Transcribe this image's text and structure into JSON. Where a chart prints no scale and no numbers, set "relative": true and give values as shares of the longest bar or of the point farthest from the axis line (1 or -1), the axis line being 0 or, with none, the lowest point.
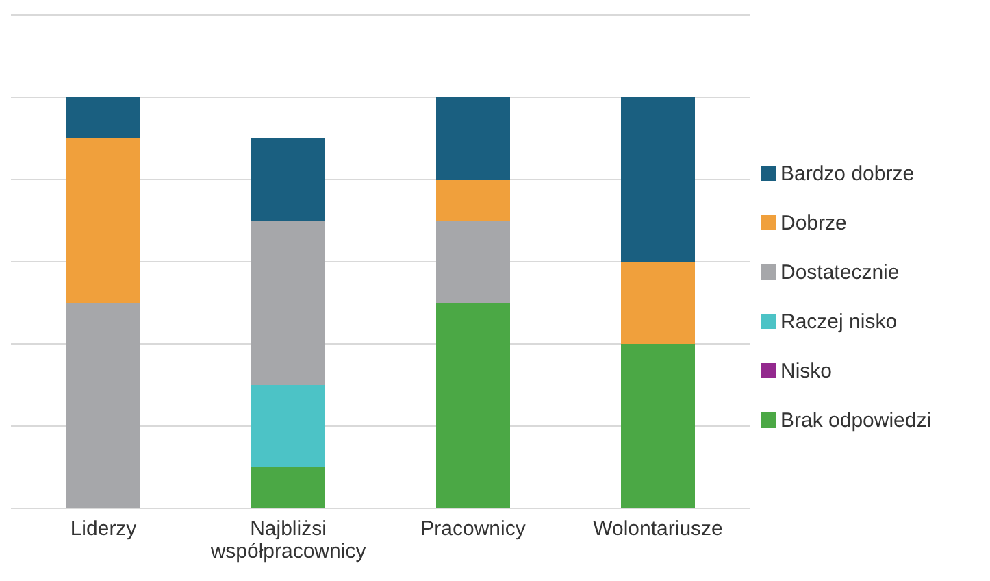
{
  "chart_data": {
    "type": "bar",
    "stacked": true,
    "relative": true,
    "grid": "y",
    "legend": "right",
    "categories": [
      "Liderzy",
      "Najbliżsi współpracownicy",
      "Pracownicy",
      "Wolontariusze"
    ],
    "series": [
      {
        "name": "Brak odpowiedzi",
        "color": "#4ba845",
        "values": [
          0,
          0.1,
          0.5,
          0.4
        ]
      },
      {
        "name": "Nisko",
        "color": "#93298e",
        "values": [
          0,
          0,
          0,
          0
        ]
      },
      {
        "name": "Raczej nisko",
        "color": "#4cc3c6",
        "values": [
          0,
          0.2,
          0,
          0
        ]
      },
      {
        "name": "Dostatecznie",
        "color": "#a6a7aa",
        "values": [
          0.5,
          0.4,
          0.2,
          0
        ]
      },
      {
        "name": "Dobrze",
        "color": "#f0a03c",
        "values": [
          0.4,
          0,
          0.1,
          0.2
        ]
      },
      {
        "name": "Bardzo dobrze",
        "color": "#1a5f80",
        "values": [
          0.1,
          0.2,
          0.2,
          0.4
        ]
      }
    ]
  }
}
